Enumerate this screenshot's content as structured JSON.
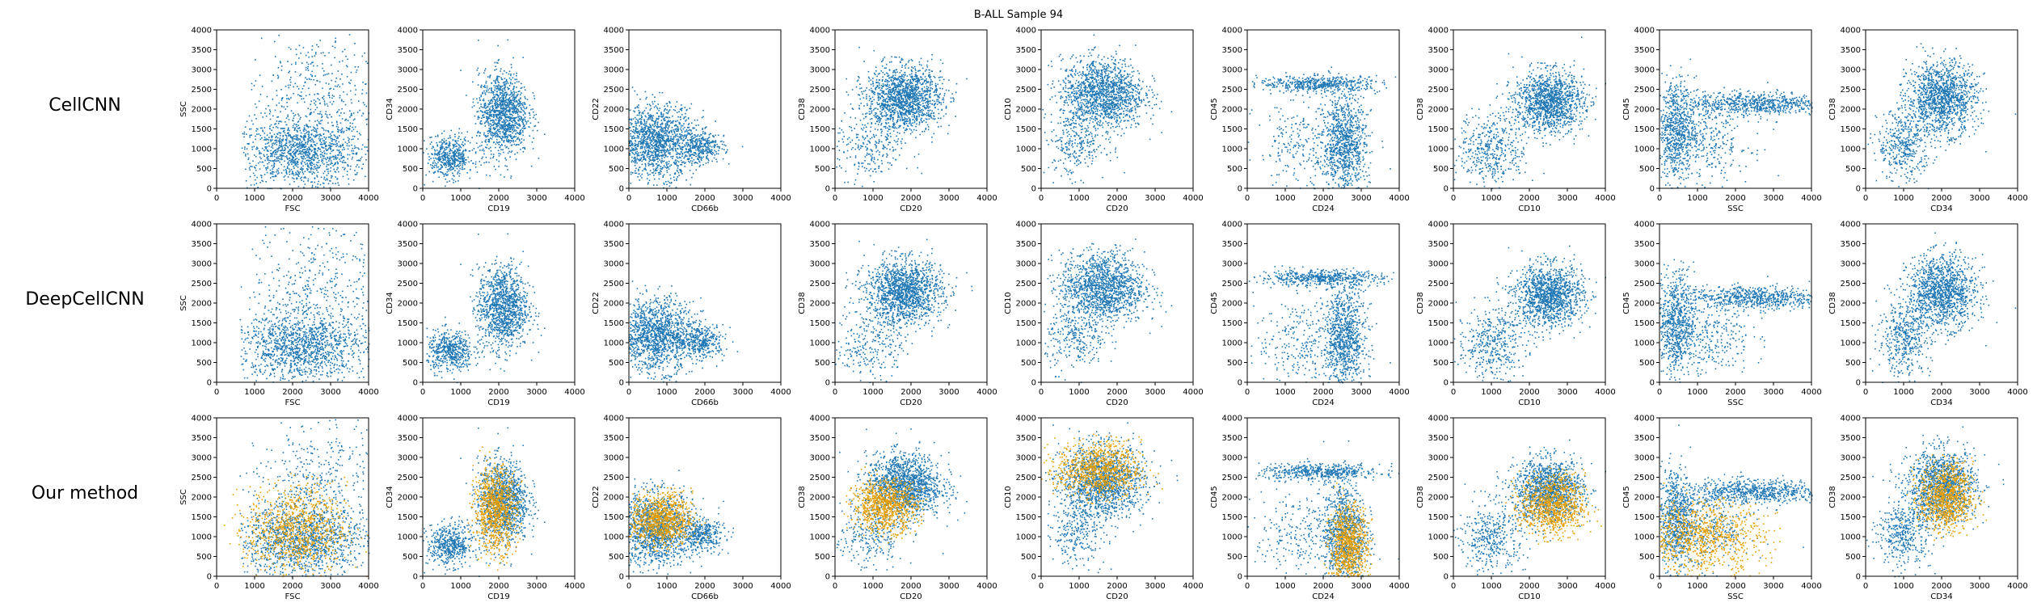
{
  "figure": {
    "title": "B-ALL Sample 94",
    "rows": [
      "CellCNN",
      "DeepCellCNN",
      "Our method"
    ]
  },
  "chart_data": {
    "type": "scatter",
    "title": "B-ALL Sample 94",
    "colors": {
      "base": "#1f77b4",
      "highlight": "#e69f00"
    },
    "axis_range": [
      0,
      4000
    ],
    "x_ticks": [
      0,
      1000,
      2000,
      3000,
      4000
    ],
    "y_ticks": [
      0,
      500,
      1000,
      1500,
      2000,
      2500,
      3000,
      3500,
      4000
    ],
    "grid": false,
    "highlight_series_row": "Our method",
    "panels": [
      {
        "xlabel": "FSC",
        "ylabel": "SSC",
        "clusters": [
          {
            "x": 2200,
            "y": 900,
            "sx": 850,
            "sy": 420,
            "w": 0.7
          },
          {
            "x": 2600,
            "y": 2200,
            "sx": 900,
            "sy": 900,
            "w": 0.3
          }
        ],
        "highlight": {
          "x": 2100,
          "y": 1200,
          "sx": 650,
          "sy": 550
        }
      },
      {
        "xlabel": "CD19",
        "ylabel": "CD34",
        "clusters": [
          {
            "x": 2100,
            "y": 1900,
            "sx": 330,
            "sy": 520,
            "w": 0.7
          },
          {
            "x": 700,
            "y": 800,
            "sx": 300,
            "sy": 260,
            "w": 0.3
          }
        ],
        "highlight": {
          "x": 1900,
          "y": 1700,
          "sx": 280,
          "sy": 520
        }
      },
      {
        "xlabel": "CD66b",
        "ylabel": "CD22",
        "clusters": [
          {
            "x": 700,
            "y": 1200,
            "sx": 500,
            "sy": 450,
            "w": 0.8
          },
          {
            "x": 1900,
            "y": 1050,
            "sx": 300,
            "sy": 200,
            "w": 0.2
          }
        ],
        "highlight": {
          "x": 850,
          "y": 1450,
          "sx": 400,
          "sy": 330
        }
      },
      {
        "xlabel": "CD20",
        "ylabel": "CD38",
        "clusters": [
          {
            "x": 1800,
            "y": 2300,
            "sx": 500,
            "sy": 400,
            "w": 0.85
          },
          {
            "x": 900,
            "y": 1000,
            "sx": 450,
            "sy": 450,
            "w": 0.15
          }
        ],
        "highlight": {
          "x": 1300,
          "y": 1800,
          "sx": 420,
          "sy": 320
        }
      },
      {
        "xlabel": "CD20",
        "ylabel": "CD10",
        "clusters": [
          {
            "x": 1600,
            "y": 2400,
            "sx": 550,
            "sy": 450,
            "w": 0.85
          },
          {
            "x": 900,
            "y": 1100,
            "sx": 400,
            "sy": 400,
            "w": 0.15
          }
        ],
        "highlight": {
          "x": 1500,
          "y": 2700,
          "sx": 550,
          "sy": 350
        }
      },
      {
        "xlabel": "CD24",
        "ylabel": "CD45",
        "clusters": [
          {
            "x": 2550,
            "y": 1100,
            "sx": 280,
            "sy": 650,
            "w": 0.55
          },
          {
            "x": 1900,
            "y": 2650,
            "sx": 800,
            "sy": 100,
            "w": 0.3
          },
          {
            "x": 1400,
            "y": 1000,
            "sx": 600,
            "sy": 600,
            "w": 0.15
          }
        ],
        "highlight": {
          "x": 2650,
          "y": 700,
          "sx": 250,
          "sy": 550
        }
      },
      {
        "xlabel": "CD10",
        "ylabel": "CD38",
        "clusters": [
          {
            "x": 2500,
            "y": 2200,
            "sx": 450,
            "sy": 380,
            "w": 0.75
          },
          {
            "x": 1000,
            "y": 1000,
            "sx": 450,
            "sy": 450,
            "w": 0.25
          }
        ],
        "highlight": {
          "x": 2600,
          "y": 1800,
          "sx": 420,
          "sy": 380
        }
      },
      {
        "xlabel": "SSC",
        "ylabel": "CD45",
        "clusters": [
          {
            "x": 400,
            "y": 1500,
            "sx": 250,
            "sy": 650,
            "w": 0.4
          },
          {
            "x": 2500,
            "y": 2150,
            "sx": 900,
            "sy": 150,
            "w": 0.4
          },
          {
            "x": 1200,
            "y": 1200,
            "sx": 600,
            "sy": 500,
            "w": 0.2
          }
        ],
        "highlight": {
          "x": 1100,
          "y": 1000,
          "sx": 800,
          "sy": 450
        }
      },
      {
        "xlabel": "CD34",
        "ylabel": "CD38",
        "clusters": [
          {
            "x": 2000,
            "y": 2300,
            "sx": 450,
            "sy": 450,
            "w": 0.75
          },
          {
            "x": 1000,
            "y": 1100,
            "sx": 350,
            "sy": 450,
            "w": 0.25
          }
        ],
        "highlight": {
          "x": 2100,
          "y": 2000,
          "sx": 350,
          "sy": 420
        }
      }
    ]
  }
}
